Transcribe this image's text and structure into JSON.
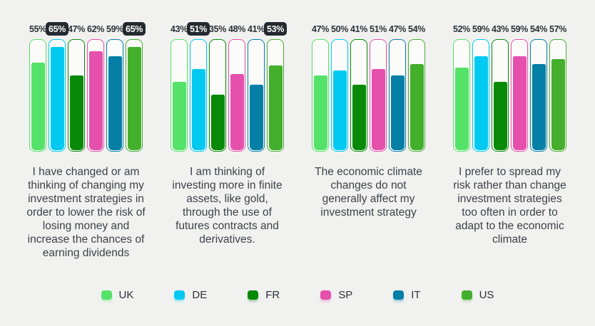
{
  "page": {
    "background": "#F1F1F0",
    "highlight_pill_bg": "#23292F",
    "highlight_pill_text": "#FFFFFF",
    "label_text_color": "#2B3137",
    "caption_text_color": "#3B4248"
  },
  "chart_data": {
    "type": "bar",
    "subtype": "grouped-progress-tubes",
    "unit": "%",
    "ylim": [
      0,
      70
    ],
    "grid": false,
    "legend_position": "bottom",
    "series": [
      {
        "label": "UK",
        "color": "#55E268"
      },
      {
        "label": "DE",
        "color": "#00C9F2"
      },
      {
        "label": "FR",
        "color": "#088A08"
      },
      {
        "label": "SP",
        "color": "#E550AC"
      },
      {
        "label": "IT",
        "color": "#057FA6"
      },
      {
        "label": "US",
        "color": "#44AE2D"
      }
    ],
    "groups": [
      {
        "caption": "I have changed or am thinking of changing my investment strategies in order to lower the risk of losing money and increase the chances of earning dividends",
        "values": [
          55,
          65,
          47,
          62,
          59,
          65
        ],
        "labels": [
          "55%",
          "65%",
          "47%",
          "62%",
          "59%",
          "65%"
        ],
        "highlighted": [
          false,
          true,
          false,
          false,
          false,
          true
        ]
      },
      {
        "caption": "I am thinking of investing more in finite assets, like gold, through the use of futures contracts and derivatives.",
        "values": [
          43,
          51,
          35,
          48,
          41,
          53
        ],
        "labels": [
          "43%",
          "51%",
          "35%",
          "48%",
          "41%",
          "53%"
        ],
        "highlighted": [
          false,
          true,
          false,
          false,
          false,
          true
        ]
      },
      {
        "caption": "The economic climate changes do not generally affect my investment strategy",
        "values": [
          47,
          50,
          41,
          51,
          47,
          54
        ],
        "labels": [
          "47%",
          "50%",
          "41%",
          "51%",
          "47%",
          "54%"
        ],
        "highlighted": [
          false,
          false,
          false,
          false,
          false,
          false
        ]
      },
      {
        "caption": "I prefer to spread my risk rather than change investment strategies too often in order to adapt to the economic climate",
        "values": [
          52,
          59,
          43,
          59,
          54,
          57
        ],
        "labels": [
          "52%",
          "59%",
          "43%",
          "59%",
          "54%",
          "57%"
        ],
        "highlighted": [
          false,
          false,
          false,
          false,
          false,
          false
        ]
      }
    ]
  }
}
